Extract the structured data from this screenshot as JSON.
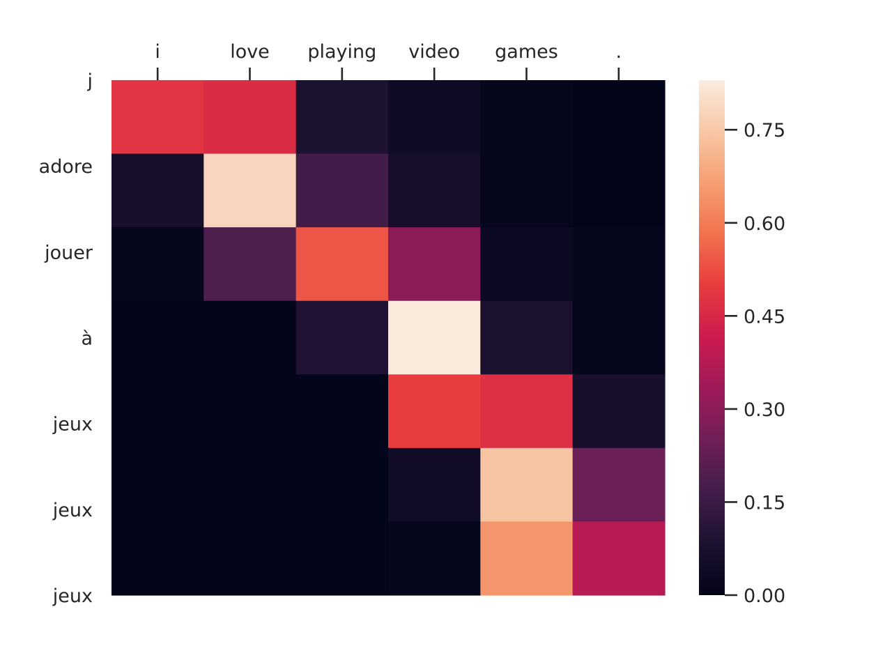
{
  "chart_data": {
    "type": "heatmap",
    "title": "",
    "xlabel": "",
    "ylabel": "",
    "x_labels": [
      "i",
      "love",
      "playing",
      "video",
      "games",
      "."
    ],
    "y_labels": [
      "j",
      "adore",
      "jouer",
      "à",
      "jeux",
      "jeux",
      "jeux"
    ],
    "values": [
      [
        0.48,
        0.46,
        0.08,
        0.04,
        0.01,
        0.0
      ],
      [
        0.06,
        0.78,
        0.17,
        0.06,
        0.01,
        0.0
      ],
      [
        0.01,
        0.19,
        0.54,
        0.3,
        0.03,
        0.01
      ],
      [
        0.0,
        0.0,
        0.09,
        0.83,
        0.08,
        0.01
      ],
      [
        0.0,
        0.0,
        0.0,
        0.5,
        0.47,
        0.07
      ],
      [
        0.0,
        0.0,
        0.0,
        0.05,
        0.74,
        0.24
      ],
      [
        0.0,
        0.0,
        0.0,
        0.01,
        0.65,
        0.38
      ]
    ],
    "colorbar": {
      "min": 0.0,
      "max": 0.83,
      "ticks": [
        0.0,
        0.15,
        0.3,
        0.45,
        0.6,
        0.75
      ],
      "tick_labels": [
        "0.00",
        "0.15",
        "0.30",
        "0.45",
        "0.60",
        "0.75"
      ],
      "colormap": "rocket",
      "placement": "right"
    },
    "x_axis_position": "top",
    "grid": false
  }
}
